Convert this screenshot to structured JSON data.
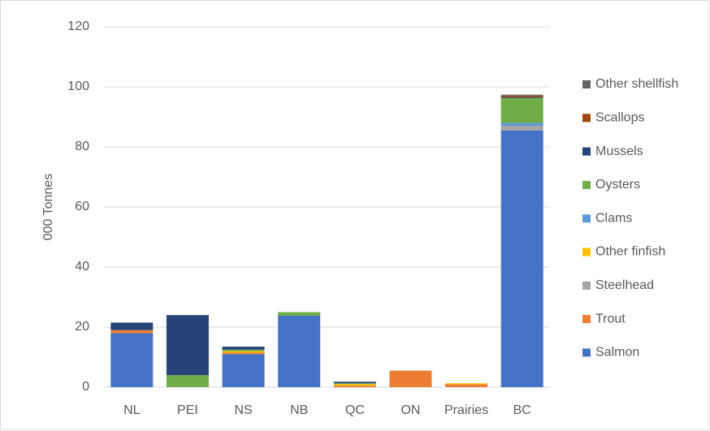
{
  "chart_data": {
    "type": "bar",
    "stacked": true,
    "y_label": "000 Tonnes",
    "categories": [
      "NL",
      "PEI",
      "NS",
      "NB",
      "QC",
      "ON",
      "Prairies",
      "BC"
    ],
    "series": [
      {
        "name": "Salmon",
        "color": "#4472c4",
        "values": [
          18,
          0,
          11,
          23.8,
          0,
          0,
          0,
          85.5
        ]
      },
      {
        "name": "Trout",
        "color": "#ed7d31",
        "values": [
          1,
          0,
          0.5,
          0,
          0.5,
          5.5,
          1,
          0
        ]
      },
      {
        "name": "Steelhead",
        "color": "#a5a5a5",
        "values": [
          0,
          0,
          0,
          0,
          0,
          0,
          0,
          1.5
        ]
      },
      {
        "name": "Other finfish",
        "color": "#ffc000",
        "values": [
          0,
          0,
          0.5,
          0,
          0.5,
          0,
          0.3,
          0
        ]
      },
      {
        "name": "Clams",
        "color": "#5b9bd5",
        "values": [
          0,
          0,
          0,
          0,
          0,
          0,
          0,
          1
        ]
      },
      {
        "name": "Oysters",
        "color": "#70ad47",
        "values": [
          0,
          4,
          0.5,
          1.2,
          0.3,
          0,
          0,
          8.3
        ]
      },
      {
        "name": "Mussels",
        "color": "#264478",
        "values": [
          2.5,
          20,
          1,
          0,
          0.5,
          0,
          0,
          0.3
        ]
      },
      {
        "name": "Scallops",
        "color": "#9e480e",
        "values": [
          0,
          0,
          0,
          0,
          0,
          0,
          0,
          0.5
        ]
      },
      {
        "name": "Other shellfish",
        "color": "#636363",
        "values": [
          0,
          0,
          0,
          0,
          0,
          0,
          0,
          0.3
        ]
      }
    ],
    "ylim": [
      0,
      120
    ],
    "yticks": [
      0,
      20,
      40,
      60,
      80,
      100,
      120
    ],
    "grid": true,
    "legend": "right"
  }
}
